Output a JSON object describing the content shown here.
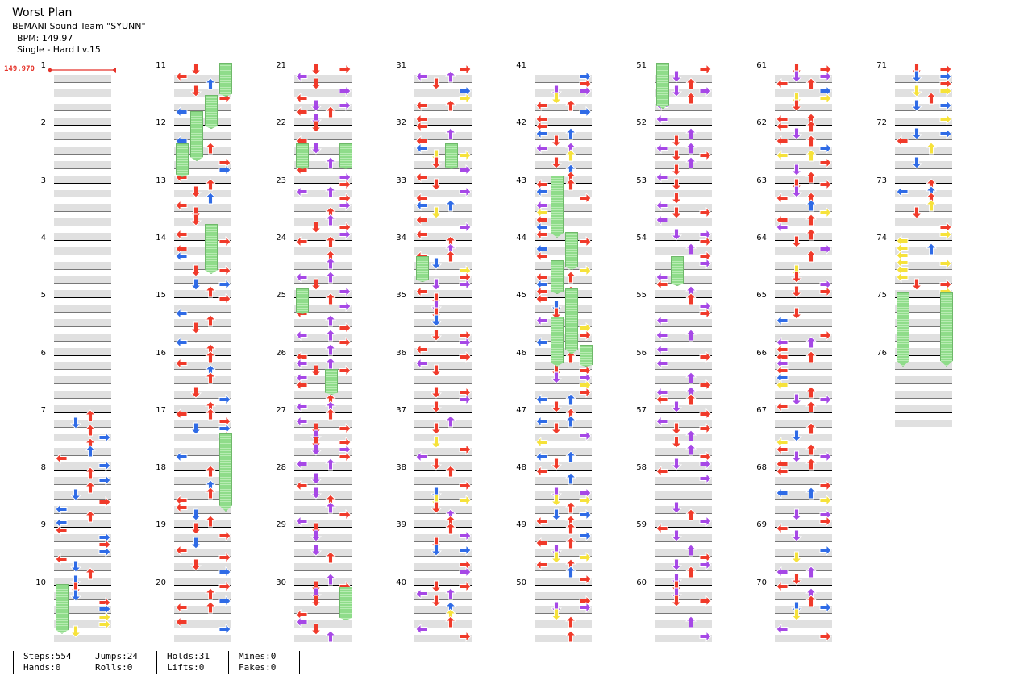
{
  "song": {
    "title": "Worst Plan",
    "artist": "BEMANI Sound Team \"SYUNN\"",
    "bpm_label": "BPM: 149.97",
    "difficulty_label": "Single - Hard  Lv.15",
    "bpm_marker": "149.970"
  },
  "measure_numbers": [
    "1",
    "2",
    "3",
    "4",
    "5",
    "6",
    "7",
    "8",
    "9",
    "10",
    "11",
    "12",
    "13",
    "14",
    "15",
    "16",
    "17",
    "18",
    "19",
    "20",
    "21",
    "22",
    "23",
    "24",
    "25",
    "26",
    "27",
    "28",
    "29",
    "30",
    "31",
    "32",
    "33",
    "34",
    "35",
    "36",
    "37",
    "38",
    "39",
    "40",
    "41",
    "42",
    "43",
    "44",
    "45",
    "46",
    "47",
    "48",
    "49",
    "50",
    "51",
    "52",
    "53",
    "54",
    "55",
    "56",
    "57",
    "58",
    "59",
    "60",
    "61",
    "62",
    "63",
    "64",
    "65",
    "66",
    "67",
    "68",
    "69",
    "70",
    "71",
    "72",
    "73",
    "74",
    "75",
    "76"
  ],
  "stats": {
    "steps": "Steps:554",
    "hands": "Hands:0",
    "jumps": "Jumps:24",
    "rolls": "Rolls:0",
    "holds": "Holds:31",
    "lifts": "Lifts:0",
    "mines": "Mines:0",
    "fakes": "Fakes:0"
  },
  "colors": {
    "red": "#f03a2a",
    "blue": "#2f6be6",
    "purple": "#a648e6",
    "yellow": "#f6e23a",
    "hold_green": "#8fdc8a",
    "band_gray": "#e0e0e0",
    "bpm_red": "#e5332a"
  },
  "icons": {
    "left": "left-arrow-icon",
    "down": "down-arrow-icon",
    "up": "up-arrow-icon",
    "right": "right-arrow-icon"
  }
}
